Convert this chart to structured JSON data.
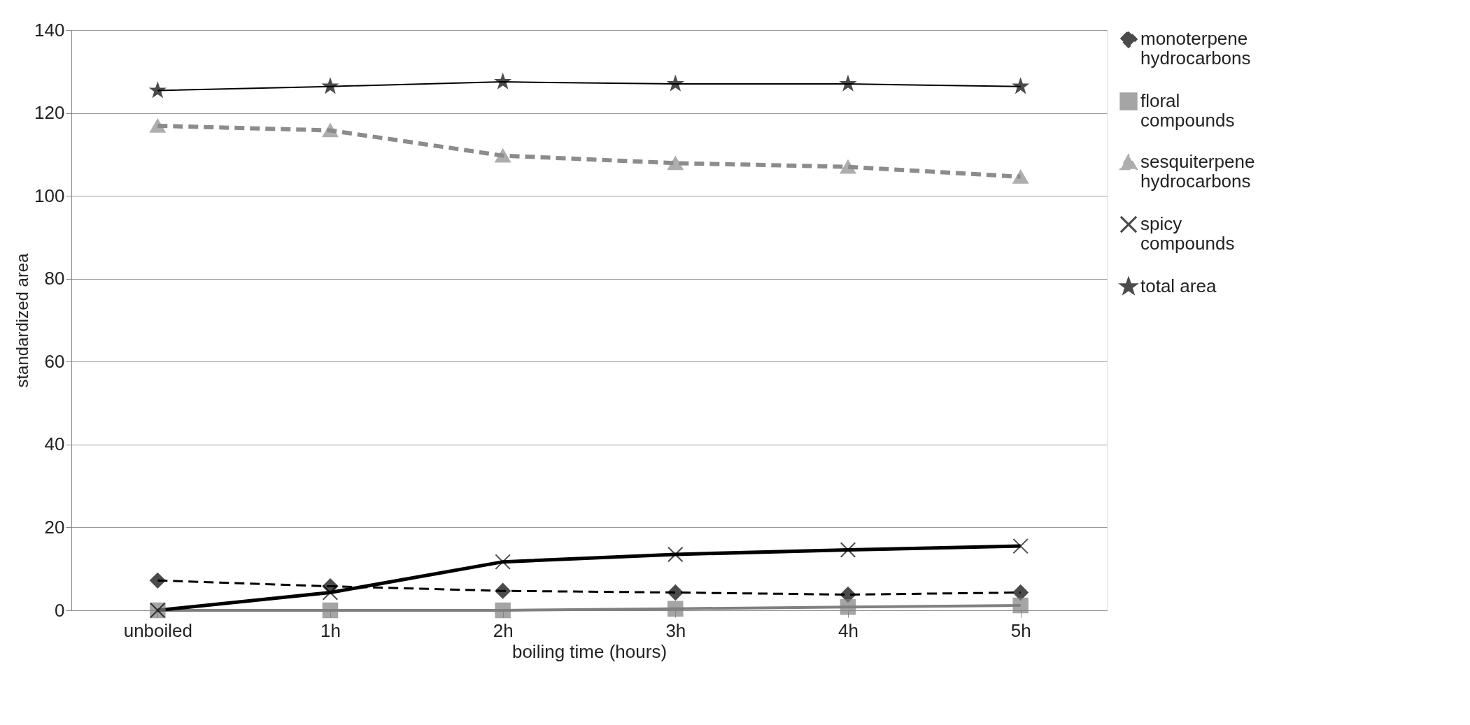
{
  "chart_data": {
    "type": "line",
    "xlabel": "boiling time (hours)",
    "ylabel": "standardized area",
    "categories": [
      "unboiled",
      "1h",
      "2h",
      "3h",
      "4h",
      "5h"
    ],
    "series": [
      {
        "name": "monoterpene hydrocarbons",
        "color": "#000000",
        "marker": "diamond",
        "line_style": "dashed",
        "values": [
          7.2,
          5.8,
          4.7,
          4.3,
          3.8,
          4.3
        ]
      },
      {
        "name": "floral compounds",
        "color": "#808080",
        "marker": "square",
        "line_style": "solid",
        "values": [
          0,
          0,
          0,
          0.4,
          0.8,
          1.2
        ]
      },
      {
        "name": "sesquiterpene hydrocarbons",
        "color": "#8c8c8c",
        "marker": "triangle",
        "line_style": "dashed",
        "values": [
          116.9,
          115.8,
          109.7,
          107.9,
          107,
          104.6
        ]
      },
      {
        "name": "spicy compounds",
        "color": "#000000",
        "marker": "cross",
        "line_style": "solid",
        "values": [
          0,
          4.3,
          11.7,
          13.5,
          14.6,
          15.5
        ]
      },
      {
        "name": "total area",
        "color": "#000000",
        "marker": "star",
        "line_style": "solid",
        "values": [
          125.4,
          126.4,
          127.5,
          127,
          127,
          126.4
        ]
      }
    ],
    "ylim": [
      0,
      140
    ],
    "yticks": [
      0,
      20,
      40,
      60,
      80,
      100,
      120,
      140
    ],
    "grid": "y",
    "legend": "right"
  }
}
